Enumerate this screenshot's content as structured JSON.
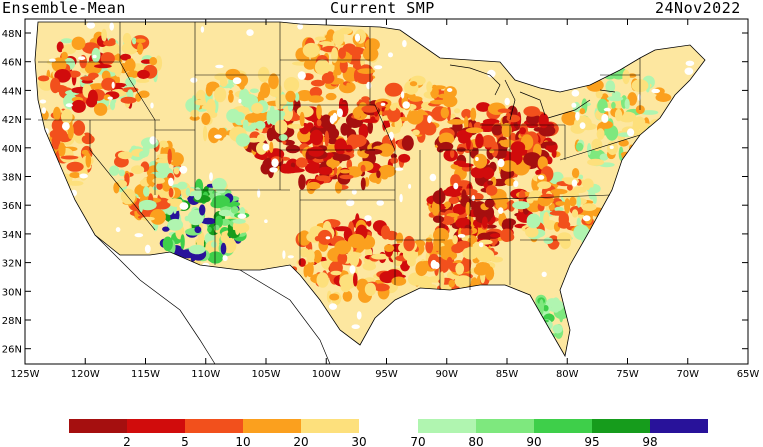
{
  "header": {
    "left": "Ensemble-Mean",
    "center": "Current SMP",
    "right": "24Nov2022"
  },
  "map": {
    "lon_range": [
      -125,
      -65
    ],
    "lat_range": [
      25,
      49
    ],
    "lon_labels": [
      "125W",
      "120W",
      "115W",
      "110W",
      "105W",
      "100W",
      "95W",
      "90W",
      "85W",
      "80W",
      "75W",
      "70W",
      "65W"
    ],
    "lat_labels": [
      "48N",
      "46N",
      "44N",
      "42N",
      "40N",
      "38N",
      "36N",
      "34N",
      "32N",
      "30N",
      "28N",
      "26N"
    ]
  },
  "colorbar": {
    "dry": [
      {
        "color": "#a50f0f",
        "label": "2"
      },
      {
        "color": "#d10c0c",
        "label": "5"
      },
      {
        "color": "#f2501c",
        "label": "10"
      },
      {
        "color": "#fba01e",
        "label": "20"
      },
      {
        "color": "#fde07c",
        "label": "30"
      }
    ],
    "wet": [
      {
        "color": "#b0f5b0",
        "label": "70"
      },
      {
        "color": "#7ee87e",
        "label": "80"
      },
      {
        "color": "#3ecf4a",
        "label": "90"
      },
      {
        "color": "#169c1c",
        "label": "95"
      },
      {
        "color": "#28129a",
        "label": "98"
      }
    ]
  }
}
